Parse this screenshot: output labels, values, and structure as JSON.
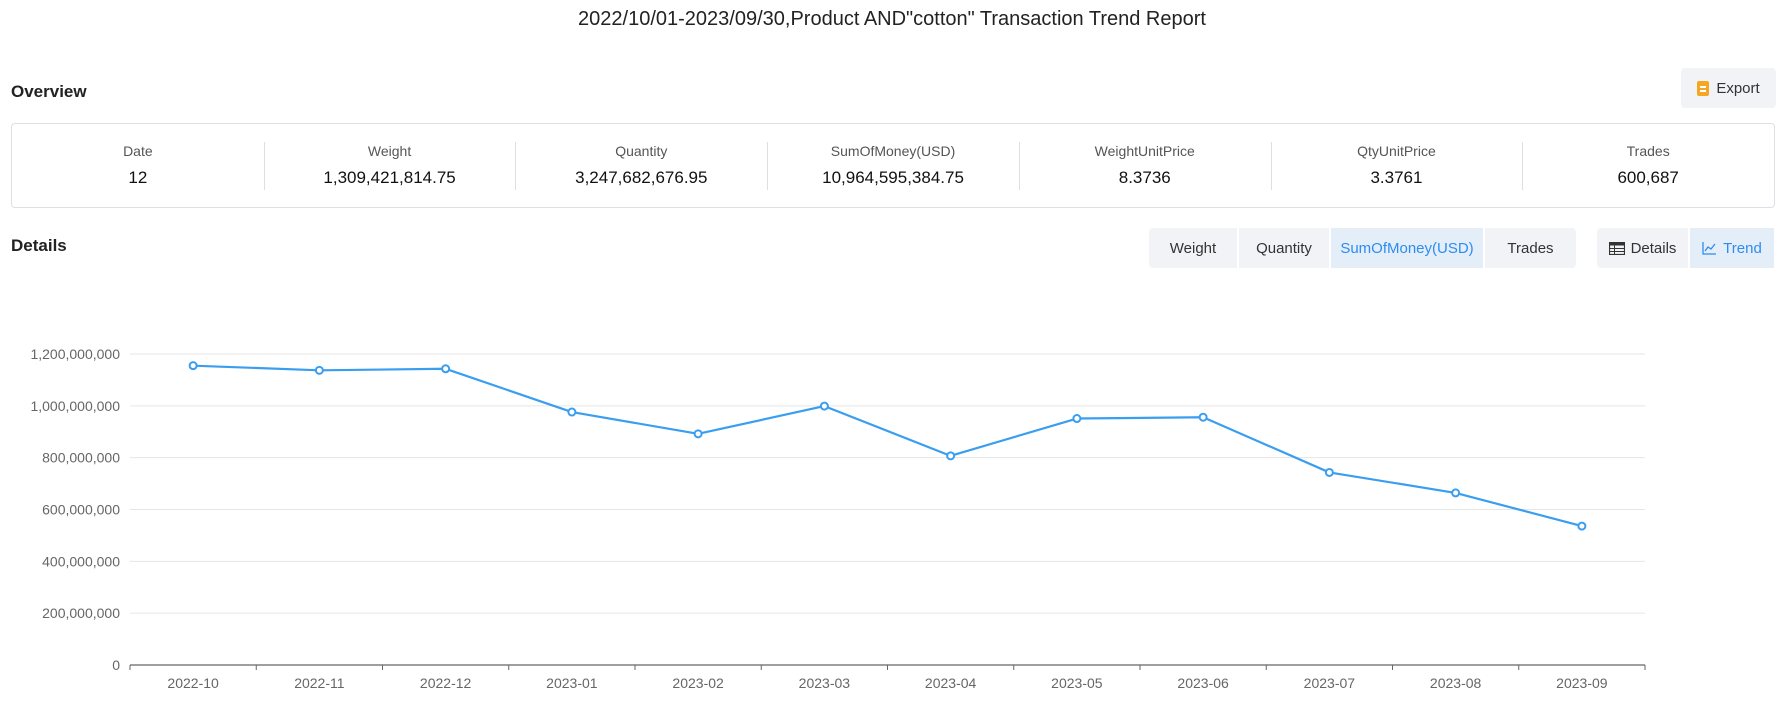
{
  "report_title": "2022/10/01-2023/09/30,Product AND\"cotton\" Transaction Trend Report",
  "overview": {
    "title": "Overview",
    "export_label": "Export",
    "stats": [
      {
        "label": "Date",
        "value": "12"
      },
      {
        "label": "Weight",
        "value": "1,309,421,814.75"
      },
      {
        "label": "Quantity",
        "value": "3,247,682,676.95"
      },
      {
        "label": "SumOfMoney(USD)",
        "value": "10,964,595,384.75"
      },
      {
        "label": "WeightUnitPrice",
        "value": "8.3736"
      },
      {
        "label": "QtyUnitPrice",
        "value": "3.3761"
      },
      {
        "label": "Trades",
        "value": "600,687"
      }
    ]
  },
  "details": {
    "title": "Details",
    "metric_tabs": [
      {
        "label": "Weight",
        "active": false
      },
      {
        "label": "Quantity",
        "active": false
      },
      {
        "label": "SumOfMoney(USD)",
        "active": true
      },
      {
        "label": "Trades",
        "active": false
      }
    ],
    "view_tabs": [
      {
        "label": "Details",
        "icon": "table-icon",
        "active": false
      },
      {
        "label": "Trend",
        "icon": "line-chart-icon",
        "active": true
      }
    ]
  },
  "colors": {
    "accent": "#2d8cf0",
    "line": "#3a9ef0",
    "grid": "#e6e6e6",
    "axis": "#666666",
    "export_icon": "#f5a623"
  },
  "chart_data": {
    "type": "line",
    "title": "",
    "xlabel": "",
    "ylabel": "",
    "categories": [
      "2022-10",
      "2022-11",
      "2022-12",
      "2023-01",
      "2023-02",
      "2023-03",
      "2023-04",
      "2023-05",
      "2023-06",
      "2023-07",
      "2023-08",
      "2023-09"
    ],
    "series": [
      {
        "values": [
          1155000000,
          1137000000,
          1143000000,
          976000000,
          892000000,
          999000000,
          807000000,
          951000000,
          956000000,
          743000000,
          664000000,
          536000000
        ]
      }
    ],
    "ylim": [
      0,
      1200000000
    ],
    "yticks": [
      {
        "value": 0,
        "label": "0"
      },
      {
        "value": 200000000,
        "label": "200,000,000"
      },
      {
        "value": 400000000,
        "label": "400,000,000"
      },
      {
        "value": 600000000,
        "label": "600,000,000"
      },
      {
        "value": 800000000,
        "label": "800,000,000"
      },
      {
        "value": 1000000000,
        "label": "1,000,000,000"
      },
      {
        "value": 1200000000,
        "label": "1,200,000,000"
      }
    ],
    "grid": true,
    "legend": "none"
  }
}
